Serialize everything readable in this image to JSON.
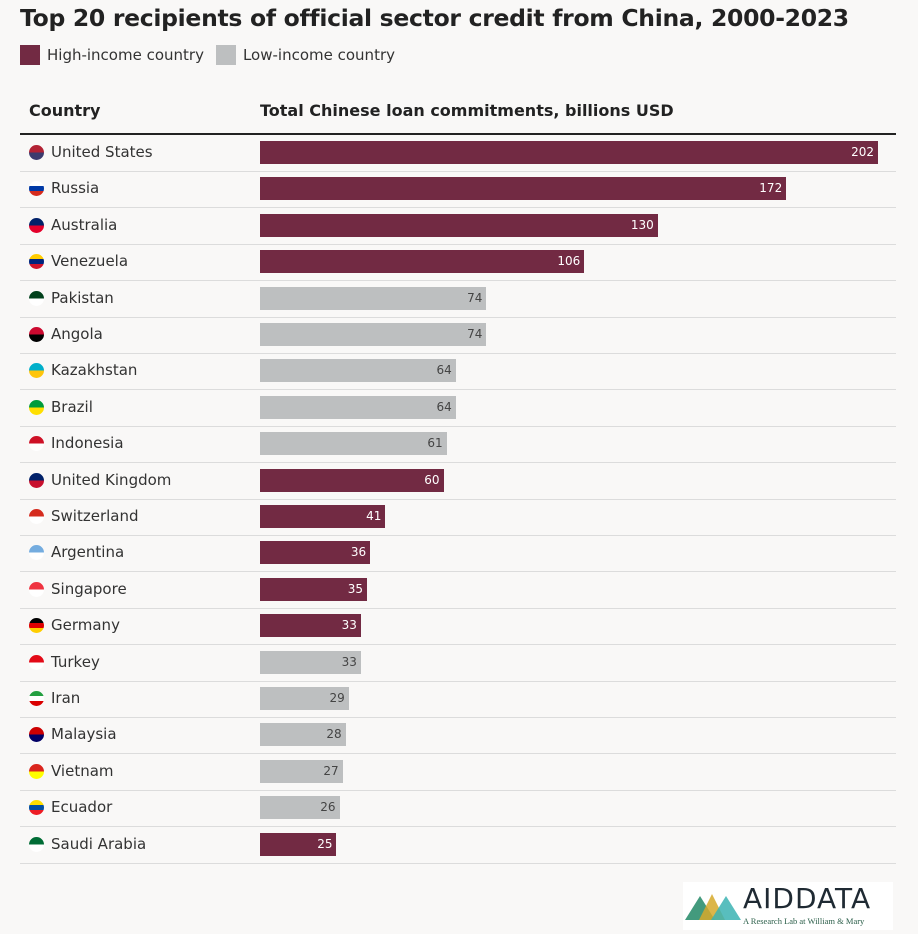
{
  "title": "Top 20 recipients of official sector credit from China, 2000-2023",
  "legend": [
    {
      "label": "High-income country",
      "color": "#722a43"
    },
    {
      "label": "Low-income country",
      "color": "#bdbfc0"
    }
  ],
  "headers": {
    "country": "Country",
    "value": "Total Chinese loan commitments, billions USD"
  },
  "logo": {
    "name": "AIDDATA",
    "tagline": "A Research Lab at William & Mary"
  },
  "chart_data": {
    "type": "bar",
    "title": "Top 20 recipients of official sector credit from China, 2000-2023",
    "xlabel": "Total Chinese loan commitments, billions USD",
    "xlim": [
      0,
      202
    ],
    "categories": [
      "United States",
      "Russia",
      "Australia",
      "Venezuela",
      "Pakistan",
      "Angola",
      "Kazakhstan",
      "Brazil",
      "Indonesia",
      "United Kingdom",
      "Switzerland",
      "Argentina",
      "Singapore",
      "Germany",
      "Turkey",
      "Iran",
      "Malaysia",
      "Vietnam",
      "Ecuador",
      "Saudi Arabia"
    ],
    "values": [
      202,
      172,
      130,
      106,
      74,
      74,
      64,
      64,
      61,
      60,
      41,
      36,
      35,
      33,
      33,
      29,
      28,
      27,
      26,
      25
    ],
    "income": [
      "high",
      "high",
      "high",
      "high",
      "low",
      "low",
      "low",
      "low",
      "low",
      "high",
      "high",
      "high",
      "high",
      "high",
      "low",
      "low",
      "low",
      "low",
      "low",
      "high"
    ],
    "flag_colors": [
      [
        "#b22234",
        "#3c3b6e"
      ],
      [
        "#ffffff",
        "#0039a6",
        "#d52b1e"
      ],
      [
        "#012169",
        "#e4002b"
      ],
      [
        "#ffcc00",
        "#00247d",
        "#cf142b"
      ],
      [
        "#01411c",
        "#ffffff"
      ],
      [
        "#cc092f",
        "#000000"
      ],
      [
        "#00afca",
        "#fec50c"
      ],
      [
        "#009c3b",
        "#ffdf00"
      ],
      [
        "#ce1126",
        "#ffffff"
      ],
      [
        "#012169",
        "#c8102e"
      ],
      [
        "#d52b1e",
        "#ffffff"
      ],
      [
        "#74acdf",
        "#ffffff"
      ],
      [
        "#ef3340",
        "#ffffff"
      ],
      [
        "#000000",
        "#dd0000",
        "#ffce00"
      ],
      [
        "#e30a17",
        "#ffffff"
      ],
      [
        "#239f40",
        "#ffffff",
        "#da0000"
      ],
      [
        "#cc0001",
        "#010066"
      ],
      [
        "#da251d",
        "#ffff00"
      ],
      [
        "#ffdd00",
        "#034ea2",
        "#ed1c24"
      ],
      [
        "#006c35",
        "#ffffff"
      ]
    ]
  }
}
